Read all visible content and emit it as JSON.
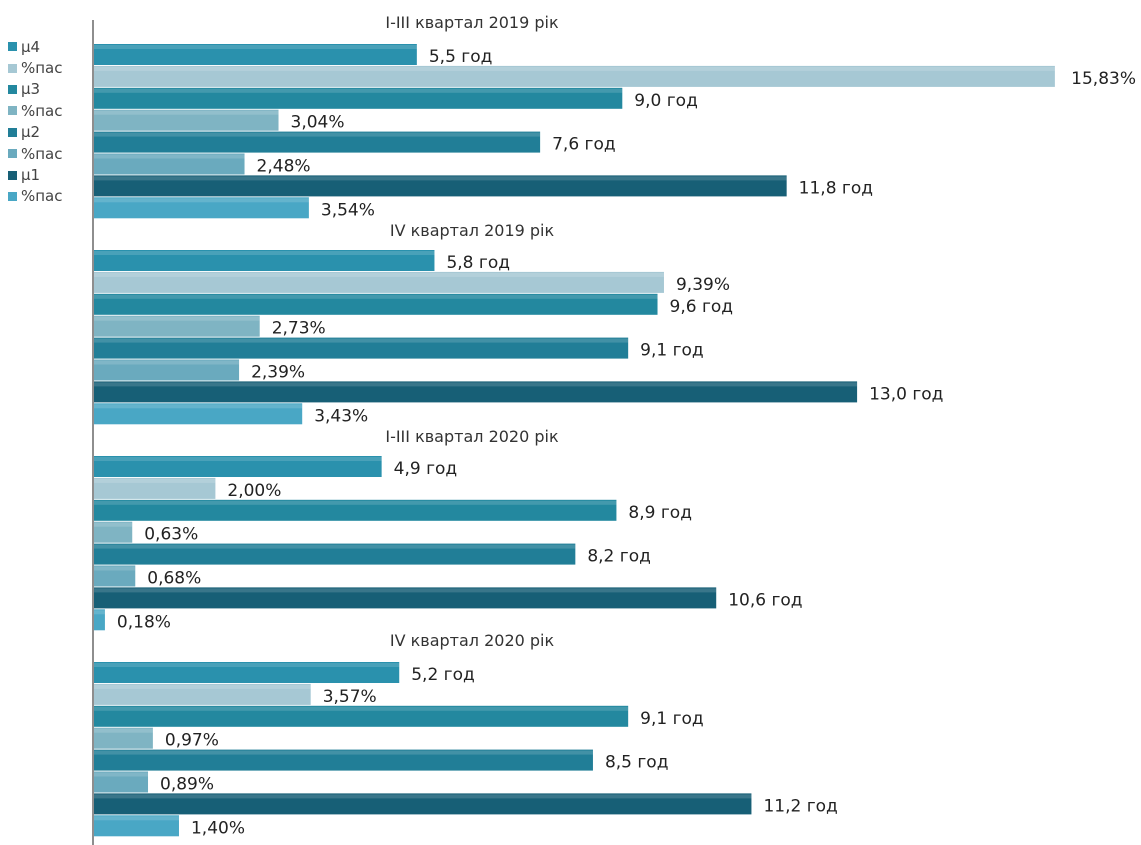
{
  "colors": {
    "mu4": "#2a91ad",
    "pas4": "#a6c8d4",
    "mu3": "#23889f",
    "pas3": "#7fb4c3",
    "mu2": "#217e97",
    "pas2": "#6aaabe",
    "mu1": "#175f76",
    "pas1": "#49a7c5",
    "axis": "#444444",
    "background": "#ffffff"
  },
  "chart_data": {
    "type": "bar",
    "orientation": "horizontal",
    "title": "",
    "xlabel": "",
    "ylabel": "",
    "grid": false,
    "legend_position": "left",
    "legend": [
      {
        "label": "μ4",
        "key": "mu4"
      },
      {
        "label": "%пас",
        "key": "pas4"
      },
      {
        "label": "μ3",
        "key": "mu3"
      },
      {
        "label": "%пас",
        "key": "pas3"
      },
      {
        "label": "μ2",
        "key": "mu2"
      },
      {
        "label": "%пас",
        "key": "pas2"
      },
      {
        "label": "μ1",
        "key": "mu1"
      },
      {
        "label": "%пас",
        "key": "pas1"
      }
    ],
    "groups": [
      {
        "title": "I-III квартал 2019 рік",
        "bars": [
          {
            "key": "mu4",
            "value": 5.5,
            "label": "5,5 год"
          },
          {
            "key": "pas4",
            "value": 15.83,
            "label": "15,83%"
          },
          {
            "key": "mu3",
            "value": 9.0,
            "label": "9,0 год"
          },
          {
            "key": "pas3",
            "value": 3.04,
            "label": "3,04%"
          },
          {
            "key": "mu2",
            "value": 7.6,
            "label": "7,6 год"
          },
          {
            "key": "pas2",
            "value": 2.48,
            "label": "2,48%"
          },
          {
            "key": "mu1",
            "value": 11.8,
            "label": "11,8 год"
          },
          {
            "key": "pas1",
            "value": 3.54,
            "label": "3,54%"
          }
        ]
      },
      {
        "title": "IV квартал 2019 рік",
        "bars": [
          {
            "key": "mu4",
            "value": 5.8,
            "label": "5,8 год"
          },
          {
            "key": "pas4",
            "value": 9.39,
            "label": "9,39%"
          },
          {
            "key": "mu3",
            "value": 9.6,
            "label": "9,6 год"
          },
          {
            "key": "pas3",
            "value": 2.73,
            "label": "2,73%"
          },
          {
            "key": "mu2",
            "value": 9.1,
            "label": "9,1 год"
          },
          {
            "key": "pas2",
            "value": 2.39,
            "label": "2,39%"
          },
          {
            "key": "mu1",
            "value": 13.0,
            "label": "13,0 год"
          },
          {
            "key": "pas1",
            "value": 3.43,
            "label": "3,43%"
          }
        ]
      },
      {
        "title": "I-III квартал 2020 рік",
        "bars": [
          {
            "key": "mu4",
            "value": 4.9,
            "label": "4,9 год"
          },
          {
            "key": "pas4",
            "value": 2.0,
            "label": "2,00%"
          },
          {
            "key": "mu3",
            "value": 8.9,
            "label": "8,9 год"
          },
          {
            "key": "pas3",
            "value": 0.63,
            "label": "0,63%"
          },
          {
            "key": "mu2",
            "value": 8.2,
            "label": "8,2 год"
          },
          {
            "key": "pas2",
            "value": 0.68,
            "label": "0,68%"
          },
          {
            "key": "mu1",
            "value": 10.6,
            "label": "10,6 год"
          },
          {
            "key": "pas1",
            "value": 0.18,
            "label": "0,18%"
          }
        ]
      },
      {
        "title": "IV квартал 2020 рік",
        "bars": [
          {
            "key": "mu4",
            "value": 5.2,
            "label": "5,2 год"
          },
          {
            "key": "pas4",
            "value": 3.57,
            "label": "3,57%"
          },
          {
            "key": "mu3",
            "value": 9.1,
            "label": "9,1 год"
          },
          {
            "key": "pas3",
            "value": 0.97,
            "label": "0,97%"
          },
          {
            "key": "mu2",
            "value": 8.5,
            "label": "8,5 год"
          },
          {
            "key": "pas2",
            "value": 0.89,
            "label": "0,89%"
          },
          {
            "key": "mu1",
            "value": 11.2,
            "label": "11,2 год"
          },
          {
            "key": "pas1",
            "value": 1.4,
            "label": "1,40%"
          }
        ]
      }
    ]
  }
}
